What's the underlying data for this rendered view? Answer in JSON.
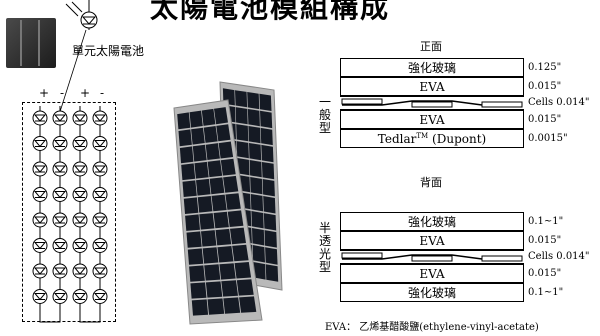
{
  "title": "太陽電池模組構成",
  "cell_label": "單元太陽電池",
  "terminals": [
    "+",
    "-",
    "+",
    "-"
  ],
  "front_label": "正面",
  "back_label": "背面",
  "general": {
    "side_label": [
      "一",
      "般",
      "型"
    ],
    "layers": [
      "強化玻璃",
      "EVA",
      "",
      "EVA",
      "TedlarTM (Dupont)"
    ],
    "dims": [
      "0.125\"",
      "0.015\"",
      "Cells 0.014\"",
      "0.015\"",
      "0.0015\""
    ]
  },
  "semi": {
    "side_label": [
      "半",
      "透",
      "光",
      "型"
    ],
    "layers": [
      "強化玻璃",
      "EVA",
      "",
      "EVA",
      "強化玻璃"
    ],
    "dims": [
      "0.1~1\"",
      "0.015\"",
      "Cells 0.014\"",
      "0.015\"",
      "0.1~1\""
    ]
  },
  "eva_note": "EVA： 乙烯基醋酸鹽(ethylene-vinyl-acetate)",
  "colors": {
    "panel_frame": "#b9b9b9",
    "panel_cell": "#151a24",
    "cell_line": "#555555"
  }
}
